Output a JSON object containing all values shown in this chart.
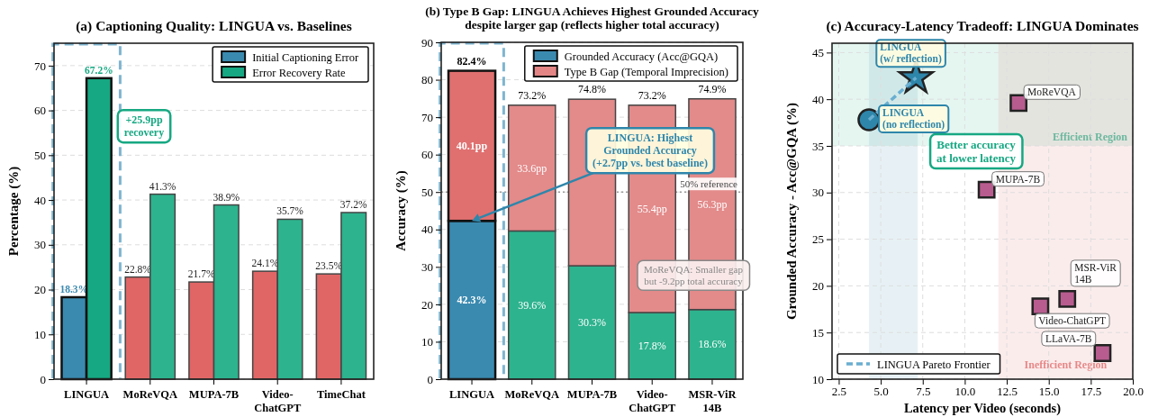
{
  "chart_data": [
    {
      "type": "bar",
      "title": "(a) Captioning Quality: LINGUA vs. Baselines",
      "ylabel": "Percentage (%)",
      "categories": [
        "LINGUA",
        "MoReVQA",
        "MUPA-7B",
        "Video-ChatGPT",
        "TimeChat"
      ],
      "series": [
        {
          "name": "Initial Captioning Error",
          "color": "#3a8ab0",
          "colors": [
            "#3a8ab0",
            "#e06666",
            "#e06666",
            "#e06666",
            "#e06666"
          ],
          "values": [
            18.3,
            22.8,
            21.7,
            24.1,
            23.5
          ],
          "value_labels": [
            "18.3%",
            "22.8%",
            "21.7%",
            "24.1%",
            "23.5%"
          ]
        },
        {
          "name": "Error Recovery Rate",
          "color": "#16a882",
          "colors": [
            "#16a882",
            "#2db38e",
            "#2db38e",
            "#2db38e",
            "#2db38e"
          ],
          "values": [
            67.2,
            41.3,
            38.9,
            35.7,
            37.2
          ],
          "value_labels": [
            "67.2%",
            "41.3%",
            "38.9%",
            "35.7%",
            "37.2%"
          ]
        }
      ],
      "ylim": [
        0,
        75
      ],
      "yticks": [
        0,
        10,
        20,
        30,
        40,
        50,
        60,
        70
      ],
      "grid": "y",
      "legend": "top right",
      "annotations": [
        "+25.9pp\nrecovery"
      ]
    },
    {
      "type": "bar",
      "stacked": true,
      "title": "(b) Type B Gap: LINGUA Achieves Highest Grounded Accuracy\ndespite larger gap (reflects higher total accuracy)",
      "ylabel": "Accuracy (%)",
      "categories": [
        "LINGUA",
        "MoReVQA",
        "MUPA-7B",
        "Video-ChatGPT",
        "MSR-ViR 14B"
      ],
      "series": [
        {
          "name": "Grounded Accuracy (Acc@GQA)",
          "color": "#3a8ab0",
          "colors": [
            "#3a8ab0",
            "#2db38e",
            "#2db38e",
            "#2db38e",
            "#2db38e"
          ],
          "values": [
            42.3,
            39.6,
            30.3,
            17.8,
            18.6
          ],
          "value_labels": [
            "42.3%",
            "39.6%",
            "30.3%",
            "17.8%",
            "18.6%"
          ]
        },
        {
          "name": "Type B Gap (Temporal Imprecision)",
          "color": "#e38585",
          "colors": [
            "#e07070",
            "#e38a8a",
            "#e38a8a",
            "#e38a8a",
            "#e38a8a"
          ],
          "values": [
            40.1,
            33.6,
            44.5,
            55.4,
            56.3
          ],
          "value_labels": [
            "40.1pp",
            "33.6pp",
            null,
            "55.4pp",
            "56.3pp"
          ]
        }
      ],
      "totals": [
        "82.4%",
        "73.2%",
        "74.8%",
        "73.2%",
        "74.9%"
      ],
      "ylim": [
        0,
        90
      ],
      "yticks": [
        0,
        10,
        20,
        30,
        40,
        50,
        60,
        70,
        80,
        90
      ],
      "grid": "y",
      "legend": "top right",
      "ref_lines": [
        {
          "axis": "y",
          "value": 50,
          "label": "50% reference",
          "color": "#999999",
          "line_style": "dotted"
        }
      ],
      "annotations": [
        "LINGUA: Highest\nGrounded Accuracy\n(+2.7pp vs. best baseline)",
        "MoReVQA: Smaller gap\nbut -9.2pp total accuracy"
      ]
    },
    {
      "type": "scatter",
      "title": "(c) Accuracy-Latency Tradeoff: LINGUA Dominates",
      "xlabel": "Latency per Video (seconds)",
      "ylabel": "Grounded Accuracy - Acc@GQA (%)",
      "series": [
        {
          "name": "LINGUA\n(no reflection)",
          "marker": "circle",
          "color": "#2e86ab",
          "x": [
            4.3
          ],
          "values": [
            37.8
          ]
        },
        {
          "name": "LINGUA\n(w/ reflection)",
          "marker": "star",
          "color": "#2e86ab",
          "x": [
            7.1
          ],
          "values": [
            42.3
          ]
        },
        {
          "name": "MoReVQA",
          "marker": "square",
          "color": "#b85c8f",
          "x": [
            13.2
          ],
          "values": [
            39.6
          ]
        },
        {
          "name": "MUPA-7B",
          "marker": "square",
          "color": "#b85c8f",
          "x": [
            11.3
          ],
          "values": [
            30.3
          ]
        },
        {
          "name": "Video-ChatGPT",
          "marker": "square",
          "color": "#b85c8f",
          "x": [
            14.5
          ],
          "values": [
            17.8
          ]
        },
        {
          "name": "MSR-ViR\n14B",
          "marker": "square",
          "color": "#b85c8f",
          "x": [
            16.1
          ],
          "values": [
            18.6
          ]
        },
        {
          "name": "LLaVA-7B",
          "marker": "square",
          "color": "#b85c8f",
          "x": [
            18.2
          ],
          "values": [
            12.8
          ]
        },
        {
          "name": "LINGUA Pareto Frontier",
          "type": "line",
          "line_style": "dashed",
          "color": "#6aaed0",
          "x": [
            4.3,
            7.1
          ],
          "values": [
            37.8,
            42.3
          ]
        }
      ],
      "xlim": [
        2.1,
        20
      ],
      "xticks": [
        {
          "value": 2.5,
          "label": "2.5"
        },
        {
          "value": 5,
          "label": "5.0"
        },
        {
          "value": 7.5,
          "label": "7.5"
        },
        {
          "value": 10,
          "label": "10.0"
        },
        {
          "value": 12.5,
          "label": "12.5"
        },
        {
          "value": 15,
          "label": "15.0"
        },
        {
          "value": 17.5,
          "label": "17.5"
        },
        {
          "value": 20,
          "label": "20.0"
        }
      ],
      "ylim": [
        10,
        46
      ],
      "yticks": [
        10,
        15,
        20,
        25,
        30,
        35,
        40,
        45
      ],
      "grid": true,
      "legend": "bottom left",
      "bands": [
        {
          "axis": "x",
          "from": 4.3,
          "to": 7.2,
          "color": "#3a8ab0"
        },
        {
          "axis": "y",
          "from": 35,
          "to": 46,
          "label": "Efficient Region",
          "color": "#2db38e"
        },
        {
          "axis": "x",
          "from": 12,
          "to": 20,
          "label": "Inefficient Region",
          "color": "#e06666"
        }
      ],
      "annotations": [
        "Better accuracy\nat lower latency"
      ]
    }
  ]
}
